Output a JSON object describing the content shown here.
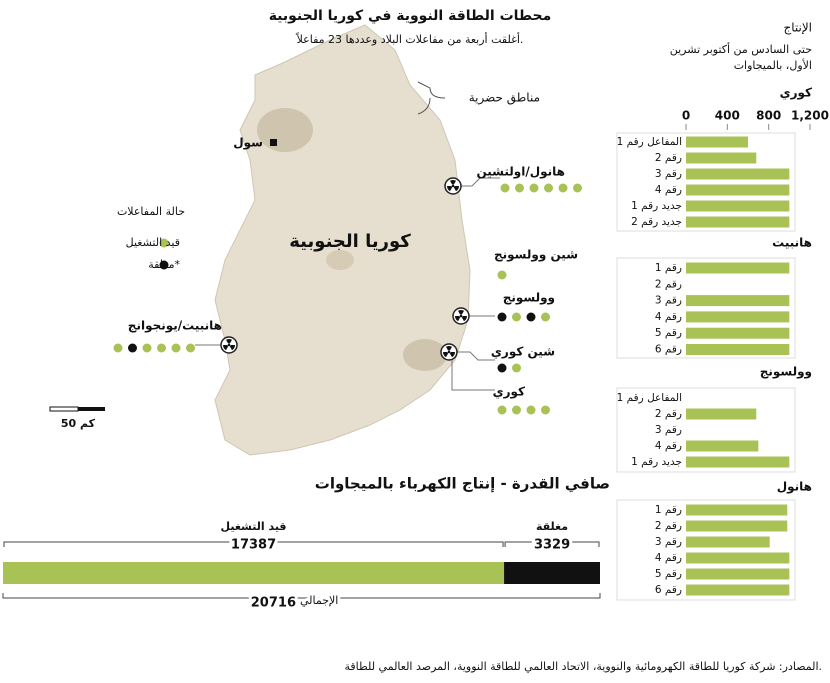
{
  "header": {
    "title": "محطات الطاقة النووية في كوريا الجنوبية",
    "subtitle": "أغلقت أربعة من مفاعلات البلاد وعددها 23 مفاعلاً."
  },
  "map": {
    "urban_label": "مناطق حضرية",
    "city": "سول",
    "country": "كوريا الجنوبية",
    "scale_label": "50 كم",
    "legend": {
      "title": "حالة المفاعلات",
      "items": [
        {
          "label": "قيد التشغيل",
          "color": "#a8c256"
        },
        {
          "label": "مغلقة*",
          "color": "#111111"
        }
      ]
    },
    "plants": [
      {
        "name": "هانول/اولتشين",
        "status": [
          0,
          0,
          0,
          0,
          0,
          0
        ]
      },
      {
        "name": "شين وولسونج",
        "status": [
          0
        ]
      },
      {
        "name": "وولسونج",
        "status": [
          1,
          0,
          1,
          0
        ]
      },
      {
        "name": "شين كوري",
        "status": [
          1,
          0
        ]
      },
      {
        "name": "كوري",
        "status": [
          0,
          0,
          0,
          0
        ]
      },
      {
        "name": "هانبيت/يونجوانج",
        "status": [
          0,
          1,
          0,
          0,
          0,
          0
        ]
      }
    ]
  },
  "production": {
    "title": "الإنتاج",
    "subtitle": [
      "حتى السادس من أكتوبر تشرين",
      "الأول، بالميجاوات"
    ]
  },
  "chart_data": [
    {
      "type": "hbar",
      "title": "كوري",
      "color": "#a8c256",
      "xlim": [
        0,
        1200
      ],
      "xticks": [
        0,
        400,
        800,
        {
          "value": 1200,
          "label": "1,200"
        }
      ],
      "categories": [
        "المفاعل رقم 1",
        "رقم 2",
        "رقم 3",
        "رقم 4",
        "جديد رقم 1",
        "جديد رقم 2"
      ],
      "values": [
        600,
        680,
        1000,
        1000,
        1000,
        1000
      ]
    },
    {
      "type": "hbar",
      "title": "هانبيت",
      "color": "#a8c256",
      "xlim": [
        0,
        1200
      ],
      "categories": [
        "رقم 1",
        "رقم 2",
        "رقم 3",
        "رقم 4",
        "رقم 5",
        "رقم 6"
      ],
      "values": [
        1000,
        null,
        1000,
        1000,
        1000,
        1000
      ]
    },
    {
      "type": "hbar",
      "title": "وولسونج",
      "color": "#a8c256",
      "xlim": [
        0,
        1200
      ],
      "categories": [
        "المفاعل رقم 1",
        "رقم 2",
        "رقم 3",
        "رقم 4",
        "جديد رقم 1"
      ],
      "values": [
        null,
        680,
        null,
        700,
        1000
      ]
    },
    {
      "type": "hbar",
      "title": "هانول",
      "color": "#a8c256",
      "xlim": [
        0,
        1200
      ],
      "categories": [
        "رقم 1",
        "رقم 2",
        "رقم 3",
        "رقم 4",
        "رقم 5",
        "رقم 6"
      ],
      "values": [
        980,
        980,
        810,
        1000,
        1000,
        1000
      ]
    },
    {
      "type": "stacked",
      "title": "صافي القدرة - إنتاج الكهرباء بالميجاوات",
      "series": [
        {
          "name": "قيد التشغيل",
          "color": "#a8c256",
          "values": [
            17387
          ]
        },
        {
          "name": "مغلقة",
          "color": "#111111",
          "values": [
            3329
          ]
        }
      ],
      "total": 20716,
      "total_label": "الإجمالي"
    }
  ],
  "footer": {
    "sources": "المصادر: شركة كوريا للطاقة الكهرومائية والنووية، الاتحاد العالمي للطاقة النووية، المرصد العالمي للطاقة."
  }
}
